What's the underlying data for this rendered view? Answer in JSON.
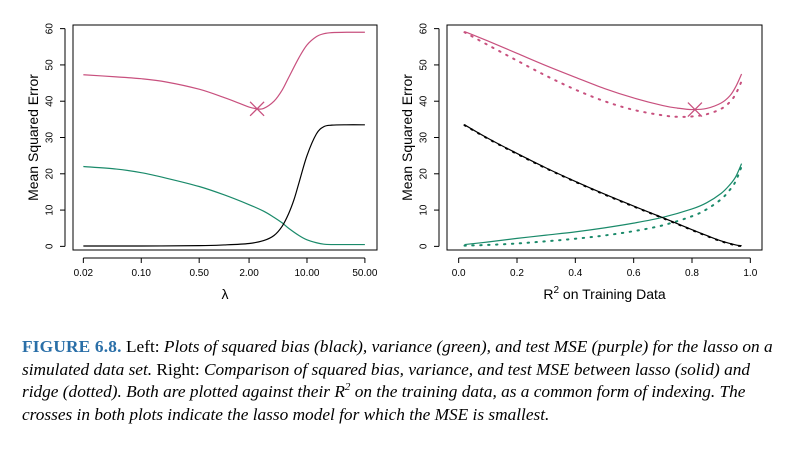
{
  "colors": {
    "bias": "#000000",
    "variance": "#1a8a6a",
    "mse": "#c8507e",
    "caption_label": "#2a6fa8"
  },
  "caption": {
    "label": "FIGURE 6.8.",
    "lead": "Left:",
    "seg1": "Plots of squared bias (black), variance (green), and test MSE (purple) for the lasso on a simulated data set.",
    "mid": "Right:",
    "seg2": "Comparison of squared bias, variance, and test MSE between lasso (solid) and ridge (dotted). Both are plotted against their",
    "r2_base": "R",
    "r2_sup": "2",
    "seg3": "on the training data, as a common form of indexing. The crosses in both plots indicate the lasso model for which the MSE is smallest."
  },
  "chart_data": [
    {
      "type": "line",
      "xscale": "log",
      "xlabel": "λ",
      "ylabel": "Mean Squared Error",
      "xlim": [
        0.015,
        70
      ],
      "ylim": [
        -1,
        61
      ],
      "xticks": [
        0.02,
        0.1,
        0.5,
        2.0,
        10.0,
        50.0
      ],
      "xtick_labels": [
        "0.02",
        "0.10",
        "0.50",
        "2.00",
        "10.00",
        "50.00"
      ],
      "yticks": [
        0,
        10,
        20,
        30,
        40,
        50,
        60
      ],
      "ytick_labels": [
        "0",
        "10",
        "20",
        "30",
        "40",
        "50",
        "60"
      ],
      "series": [
        {
          "color": "mse",
          "style": "solid",
          "x": [
            0.02,
            0.05,
            0.1,
            0.2,
            0.5,
            1.0,
            1.5,
            2.0,
            2.5,
            3.0,
            4.0,
            5.0,
            6.0,
            8.0,
            10.0,
            13.0,
            16.0,
            20.0,
            30.0,
            50.0
          ],
          "y": [
            47.3,
            46.7,
            46.2,
            45.3,
            43.3,
            41.0,
            39.5,
            38.4,
            37.9,
            38.0,
            40.0,
            43.0,
            46.5,
            52.0,
            55.5,
            57.8,
            58.6,
            58.9,
            59.0,
            59.0
          ]
        },
        {
          "color": "variance",
          "style": "solid",
          "x": [
            0.02,
            0.05,
            0.1,
            0.2,
            0.5,
            1.0,
            2.0,
            3.0,
            4.0,
            5.0,
            6.0,
            8.0,
            10.0,
            13.0,
            16.0,
            20.0,
            30.0,
            50.0
          ],
          "y": [
            22.0,
            21.3,
            20.3,
            18.8,
            16.5,
            14.2,
            11.5,
            9.7,
            8.0,
            6.5,
            5.0,
            3.0,
            1.8,
            1.0,
            0.6,
            0.5,
            0.5,
            0.5
          ]
        },
        {
          "color": "bias",
          "style": "solid",
          "x": [
            0.02,
            0.1,
            0.5,
            1.0,
            2.0,
            3.0,
            4.0,
            5.0,
            6.0,
            7.0,
            8.0,
            10.0,
            13.0,
            16.0,
            20.0,
            30.0,
            50.0
          ],
          "y": [
            0.1,
            0.1,
            0.2,
            0.4,
            0.8,
            1.6,
            3.0,
            5.5,
            9.0,
            13.0,
            17.5,
            25.0,
            31.0,
            33.0,
            33.4,
            33.5,
            33.5
          ]
        }
      ],
      "markers": [
        {
          "x": 2.5,
          "y": 37.9,
          "color": "mse",
          "symbol": "cross"
        }
      ]
    },
    {
      "type": "line",
      "xlabel_base": "R",
      "xlabel_sup": "2",
      "xlabel_rest": "on Training Data",
      "ylabel": "Mean Squared Error",
      "xlim": [
        -0.04,
        1.04
      ],
      "ylim": [
        -1,
        61
      ],
      "xticks": [
        0.0,
        0.2,
        0.4,
        0.6,
        0.8,
        1.0
      ],
      "xtick_labels": [
        "0.0",
        "0.2",
        "0.4",
        "0.6",
        "0.8",
        "1.0"
      ],
      "yticks": [
        0,
        10,
        20,
        30,
        40,
        50,
        60
      ],
      "ytick_labels": [
        "0",
        "10",
        "20",
        "30",
        "40",
        "50",
        "60"
      ],
      "series": [
        {
          "color": "mse",
          "style": "solid",
          "x": [
            0.02,
            0.1,
            0.2,
            0.3,
            0.4,
            0.5,
            0.6,
            0.7,
            0.75,
            0.8,
            0.85,
            0.9,
            0.93,
            0.95,
            0.97
          ],
          "y": [
            59.2,
            56.6,
            53.2,
            49.8,
            46.6,
            43.5,
            40.9,
            38.8,
            38.1,
            37.7,
            38.0,
            39.5,
            41.5,
            44.0,
            47.5
          ]
        },
        {
          "color": "mse",
          "style": "dotted",
          "x": [
            0.02,
            0.1,
            0.2,
            0.3,
            0.4,
            0.5,
            0.6,
            0.7,
            0.75,
            0.8,
            0.85,
            0.9,
            0.93,
            0.95,
            0.97
          ],
          "y": [
            59.0,
            55.5,
            51.2,
            47.0,
            43.2,
            40.0,
            37.6,
            36.1,
            35.7,
            35.8,
            36.4,
            37.9,
            39.8,
            42.0,
            45.5
          ]
        },
        {
          "color": "variance",
          "style": "solid",
          "x": [
            0.02,
            0.1,
            0.2,
            0.3,
            0.4,
            0.5,
            0.6,
            0.7,
            0.8,
            0.85,
            0.9,
            0.93,
            0.95,
            0.97
          ],
          "y": [
            0.5,
            1.2,
            2.2,
            3.1,
            4.0,
            5.1,
            6.4,
            8.0,
            10.3,
            12.0,
            14.6,
            17.0,
            19.2,
            22.8
          ]
        },
        {
          "color": "variance",
          "style": "dotted",
          "x": [
            0.02,
            0.1,
            0.2,
            0.3,
            0.4,
            0.5,
            0.6,
            0.7,
            0.8,
            0.85,
            0.9,
            0.93,
            0.95,
            0.97
          ],
          "y": [
            0.2,
            0.4,
            0.8,
            1.4,
            2.1,
            3.0,
            4.2,
            5.8,
            8.3,
            10.2,
            13.0,
            15.6,
            18.0,
            22.0
          ]
        },
        {
          "color": "bias",
          "style": "solid",
          "x": [
            0.02,
            0.1,
            0.2,
            0.3,
            0.4,
            0.5,
            0.6,
            0.7,
            0.8,
            0.85,
            0.9,
            0.95,
            0.97
          ],
          "y": [
            33.5,
            29.8,
            25.6,
            21.6,
            17.9,
            14.4,
            11.1,
            7.9,
            4.6,
            3.0,
            1.5,
            0.4,
            0.2
          ]
        },
        {
          "color": "bias",
          "style": "dotted",
          "x": [
            0.02,
            0.1,
            0.2,
            0.3,
            0.4,
            0.5,
            0.6,
            0.7,
            0.8,
            0.85,
            0.9,
            0.95,
            0.97
          ],
          "y": [
            33.4,
            29.7,
            25.5,
            21.5,
            17.8,
            14.3,
            11.0,
            7.8,
            4.5,
            2.9,
            1.4,
            0.3,
            0.1
          ]
        }
      ],
      "markers": [
        {
          "x": 0.81,
          "y": 37.7,
          "color": "mse",
          "symbol": "cross"
        }
      ]
    }
  ]
}
